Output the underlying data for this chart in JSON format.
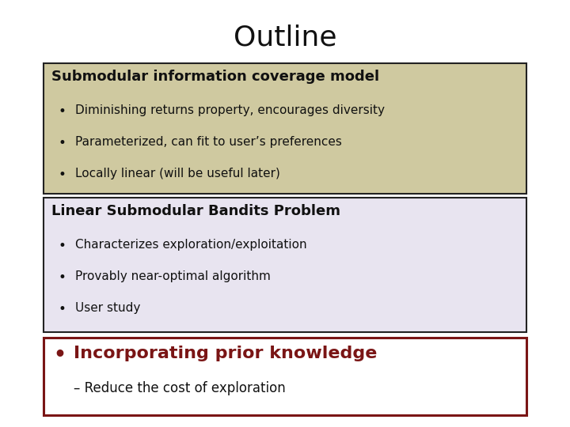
{
  "title": "Outline",
  "title_fontsize": 26,
  "bg_color": "#ffffff",
  "box1": {
    "heading": "Submodular information coverage model",
    "heading_fontsize": 13,
    "bg_color": "#cfc9a0",
    "border_color": "#222222",
    "bullets": [
      "Diminishing returns property, encourages diversity",
      "Parameterized, can fit to user’s preferences",
      "Locally linear (will be useful later)"
    ],
    "bullet_fontsize": 11,
    "text_color": "#111111"
  },
  "box2": {
    "heading": "Linear Submodular Bandits Problem",
    "heading_fontsize": 13,
    "bg_color": "#e8e4f0",
    "border_color": "#222222",
    "bullets": [
      "Characterizes exploration/exploitation",
      "Provably near-optimal algorithm",
      "User study"
    ],
    "bullet_fontsize": 11,
    "text_color": "#111111"
  },
  "box3": {
    "bullet_main": "Incorporating prior knowledge",
    "bullet_main_fontsize": 16,
    "bullet_main_color": "#7a1515",
    "sub_bullet": "– Reduce the cost of exploration",
    "sub_bullet_fontsize": 12,
    "sub_bullet_color": "#111111",
    "bg_color": "#ffffff",
    "border_color": "#7a1515",
    "border_width": 2.2
  }
}
